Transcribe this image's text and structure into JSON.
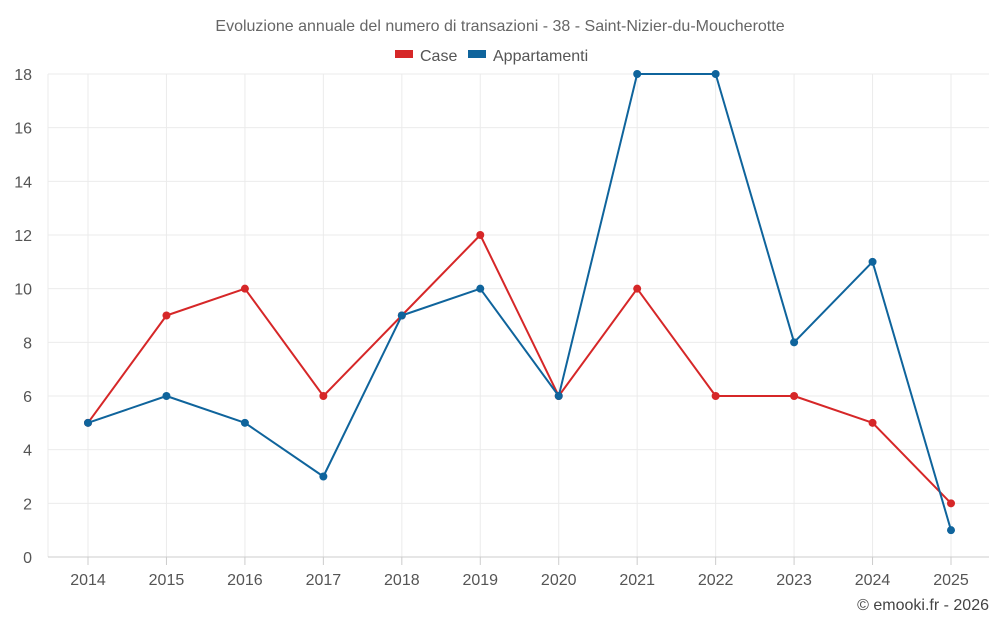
{
  "chart_data": {
    "type": "line",
    "title": "Evoluzione annuale del numero di transazioni - 38 - Saint-Nizier-du-Moucherotte",
    "categories": [
      "2014",
      "2015",
      "2016",
      "2017",
      "2018",
      "2019",
      "2020",
      "2021",
      "2022",
      "2023",
      "2024",
      "2025"
    ],
    "series": [
      {
        "name": "Case",
        "color": "#d62728",
        "values": [
          5,
          9,
          10,
          6,
          9,
          12,
          6,
          10,
          6,
          6,
          5,
          2
        ]
      },
      {
        "name": "Appartamenti",
        "color": "#0f649c",
        "values": [
          5,
          6,
          5,
          3,
          9,
          10,
          6,
          18,
          18,
          8,
          11,
          1
        ]
      }
    ],
    "ylim": [
      0,
      18
    ],
    "yticks": [
      0,
      2,
      4,
      6,
      8,
      10,
      12,
      14,
      16,
      18
    ],
    "grid": true,
    "legend_position": "top-center",
    "xlabel": "",
    "ylabel": ""
  },
  "credit": "© emooki.fr - 2026"
}
